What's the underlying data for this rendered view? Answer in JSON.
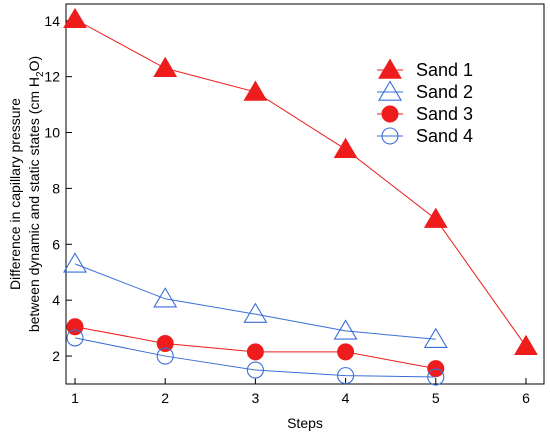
{
  "chart_data": {
    "type": "line",
    "xlabel": "Steps",
    "ylabel_line1": "Difference in capillary pressure",
    "ylabel_line2": "between dynamic and static states (cm H",
    "ylabel_sub": "2",
    "ylabel_end": "O)",
    "xlim": [
      0.9,
      6.2
    ],
    "ylim": [
      1,
      14.6
    ],
    "xticks": [
      1,
      2,
      3,
      4,
      5,
      6
    ],
    "yticks": [
      2,
      4,
      6,
      8,
      10,
      12,
      14
    ],
    "grid": false,
    "legend_position": "top-right",
    "series": [
      {
        "name": "Sand 1",
        "marker": "triangle-filled",
        "color": "#ee1c1c",
        "x": [
          1,
          2,
          3,
          4,
          5,
          6
        ],
        "y": [
          14.05,
          12.3,
          11.45,
          9.4,
          6.9,
          2.35
        ]
      },
      {
        "name": "Sand 2",
        "marker": "triangle-open",
        "color": "#3a6fd8",
        "x": [
          1,
          2,
          3,
          4,
          5
        ],
        "y": [
          5.3,
          4.05,
          3.5,
          2.9,
          2.6
        ]
      },
      {
        "name": "Sand 3",
        "marker": "circle-filled",
        "color": "#ee1c1c",
        "x": [
          1,
          2,
          3,
          4,
          5
        ],
        "y": [
          3.05,
          2.45,
          2.15,
          2.15,
          1.55
        ]
      },
      {
        "name": "Sand 4",
        "marker": "circle-open",
        "color": "#3a6fd8",
        "x": [
          1,
          2,
          3,
          4,
          5
        ],
        "y": [
          2.65,
          2.0,
          1.5,
          1.3,
          1.25
        ]
      }
    ]
  }
}
